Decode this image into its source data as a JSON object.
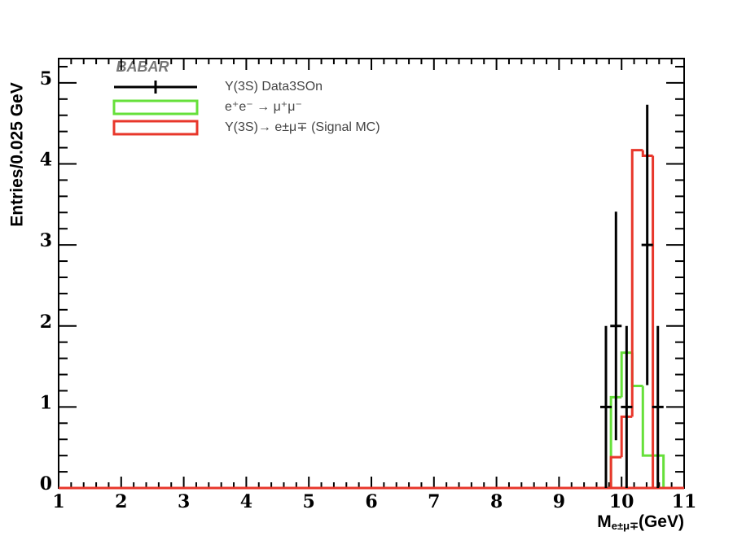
{
  "chart_data": {
    "type": "histogram",
    "experiment_label": "BABAR",
    "y_label": "Entries/0.025 GeV",
    "x_label": [
      "M",
      "e±μ∓",
      "(GeV)"
    ],
    "xlim": [
      1,
      11
    ],
    "ylim": [
      0,
      5.3
    ],
    "xticks": [
      1,
      2,
      3,
      4,
      5,
      6,
      7,
      8,
      9,
      10,
      11
    ],
    "yticks": [
      0,
      1,
      2,
      3,
      4,
      5
    ],
    "bins": [
      9.83,
      10.0,
      10.17,
      10.34,
      10.5,
      10.67
    ],
    "series": [
      {
        "name": "e⁺e⁻ → μ⁺μ⁻",
        "color": "#66e03a",
        "values": [
          1.12,
          1.67,
          1.26,
          0.4,
          0.4
        ]
      },
      {
        "name": "Υ(3S)→ e±μ∓ (Signal MC)",
        "color": "#e8372b",
        "values": [
          0.38,
          0.88,
          4.17,
          4.1,
          0
        ]
      }
    ],
    "points": {
      "name": "Υ(3S) Data3SOn",
      "color": "#000000",
      "x": [
        9.75,
        9.91,
        10.08,
        10.41,
        10.58
      ],
      "values": [
        1,
        2,
        1,
        3,
        1
      ],
      "errors": [
        1,
        1.41,
        1,
        1.73,
        1
      ]
    }
  }
}
